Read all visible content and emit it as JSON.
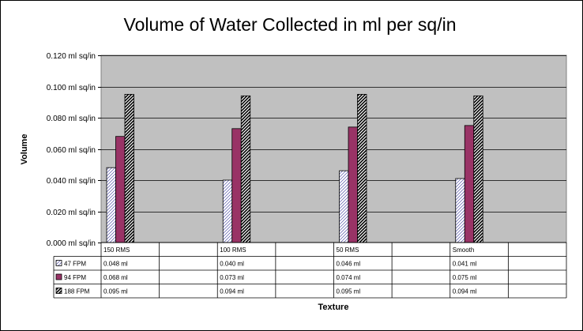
{
  "chart_data": {
    "type": "bar",
    "title": "Volume of Water Collected in ml per sq/in",
    "xlabel": "Texture",
    "ylabel": "Volume",
    "categories": [
      "150 RMS",
      "100 RMS",
      "50 RMS",
      "Smooth"
    ],
    "ylim": [
      0,
      0.12
    ],
    "yticks": [
      "0.000 ml sq/in",
      "0.020 ml sq/in",
      "0.040 ml sq/in",
      "0.060 ml sq/in",
      "0.080 ml sq/in",
      "0.100 ml sq/in",
      "0.120 ml sq/in"
    ],
    "grid": true,
    "plot_background": "#c0c0c0",
    "series": [
      {
        "name": "47 FPM",
        "values": [
          0.048,
          0.04,
          0.046,
          0.041
        ],
        "labels": [
          "0.048 ml",
          "0.040 ml",
          "0.046 ml",
          "0.041 ml"
        ],
        "fill": "diagonal-hatch-light",
        "color": "#ffffff"
      },
      {
        "name": "94 FPM",
        "values": [
          0.068,
          0.073,
          0.074,
          0.075
        ],
        "labels": [
          "0.068 ml",
          "0.073 ml",
          "0.074 ml",
          "0.075 ml"
        ],
        "fill": "solid",
        "color": "#993366"
      },
      {
        "name": "188 FPM",
        "values": [
          0.095,
          0.094,
          0.095,
          0.094
        ],
        "labels": [
          "0.095 ml",
          "0.094 ml",
          "0.095 ml",
          "0.094 ml"
        ],
        "fill": "diagonal-hatch-dark",
        "color": "#000000"
      }
    ],
    "legend": "data-table"
  }
}
